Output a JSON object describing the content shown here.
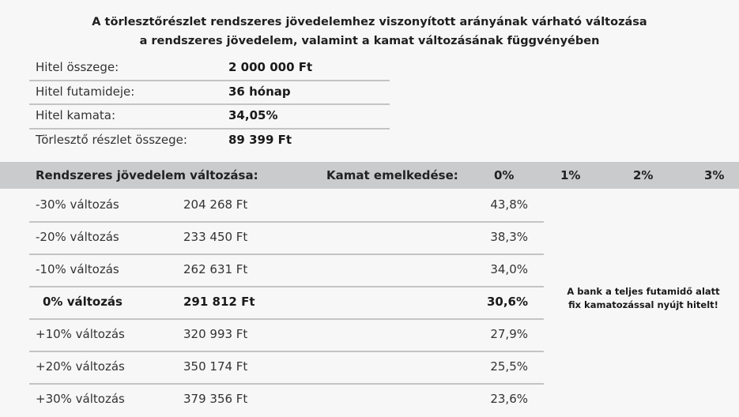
{
  "title": {
    "line1": "A törlesztőrészlet rendszeres jövedelemhez viszonyított arányának várható változása",
    "line2": "a rendszeres jövedelem, valamint a kamat változásának függvényében"
  },
  "loan_info": [
    {
      "label": "Hitel összege:",
      "value": "2 000 000 Ft"
    },
    {
      "label": "Hitel futamideje:",
      "value": "36 hónap"
    },
    {
      "label": "Hitel kamata:",
      "value": "34,05%"
    },
    {
      "label": "Törlesztő részlet összege:",
      "value": "89 399 Ft"
    }
  ],
  "table": {
    "header": {
      "income_change": "Rendszeres jövedelem változása:",
      "rate_increase": "Kamat emelkedése:",
      "rate_cols": [
        "0%",
        "1%",
        "2%",
        "3%"
      ]
    },
    "rows": [
      {
        "change": "-30% változás",
        "income": "204 268 Ft",
        "ratio": "43,8%"
      },
      {
        "change": "-20% változás",
        "income": "233 450 Ft",
        "ratio": "38,3%"
      },
      {
        "change": "-10% változás",
        "income": "262 631 Ft",
        "ratio": "34,0%"
      },
      {
        "change": "0% változás",
        "income": "291 812 Ft",
        "ratio": "30,6%"
      },
      {
        "change": "+10% változás",
        "income": "320 993 Ft",
        "ratio": "27,9%"
      },
      {
        "change": "+20% változás",
        "income": "350 174 Ft",
        "ratio": "25,5%"
      },
      {
        "change": "+30% változás",
        "income": "379 356 Ft",
        "ratio": "23,6%"
      }
    ]
  },
  "note": {
    "line1": "A bank a teljes futamidő alatt",
    "line2": "fix kamatozással nyújt hitelt!"
  }
}
